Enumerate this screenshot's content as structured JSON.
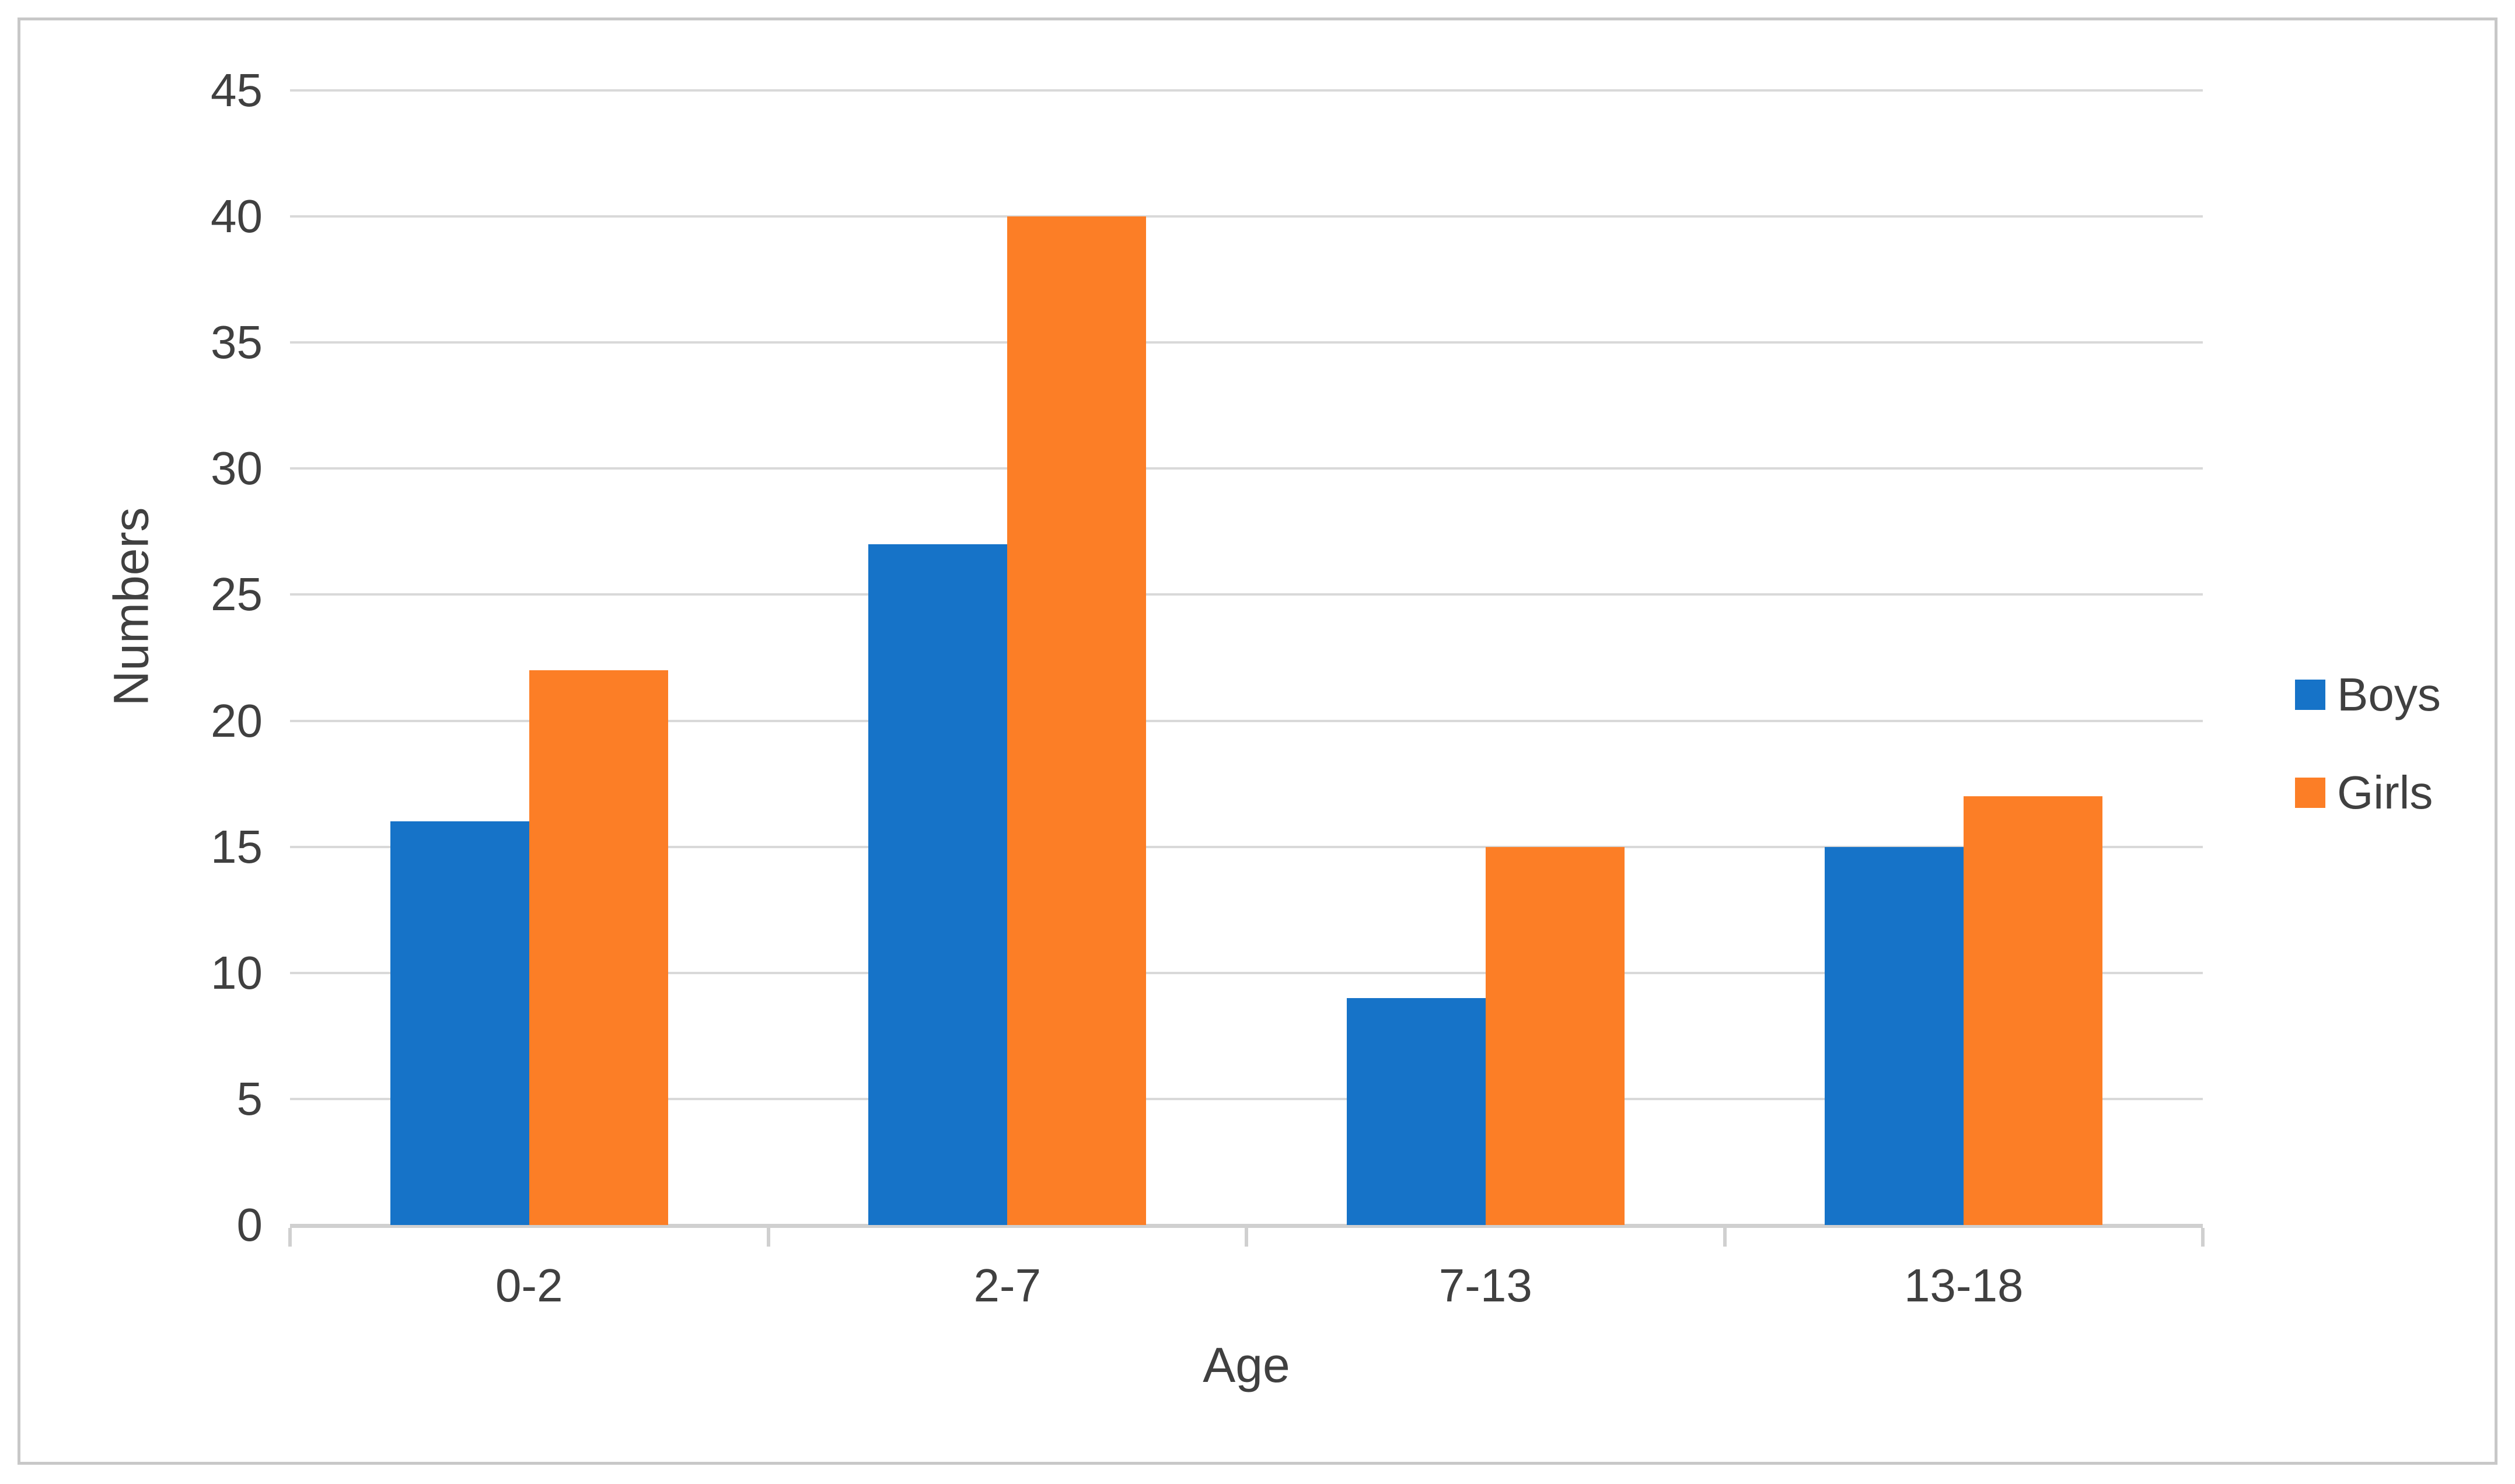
{
  "chart_data": {
    "type": "bar",
    "categories": [
      "0-2",
      "2-7",
      "7-13",
      "13-18"
    ],
    "series": [
      {
        "name": "Boys",
        "color": "#1673C8",
        "values": [
          16,
          27,
          9,
          15
        ]
      },
      {
        "name": "Girls",
        "color": "#FC7E26",
        "values": [
          22,
          40,
          15,
          17
        ]
      }
    ],
    "title": "",
    "xlabel": "Age",
    "ylabel": "Numbers",
    "ylim": [
      0,
      45
    ],
    "ytick_step": 5,
    "y_ticks": [
      "0",
      "5",
      "10",
      "15",
      "20",
      "25",
      "30",
      "35",
      "40",
      "45"
    ],
    "grid": "horizontal",
    "legend_position": "right",
    "gridline_color": "#D9D9D9",
    "axis_line_color": "#D0D0D0",
    "text_color": "#404040",
    "frame_border_color": "#C8C8C8"
  }
}
